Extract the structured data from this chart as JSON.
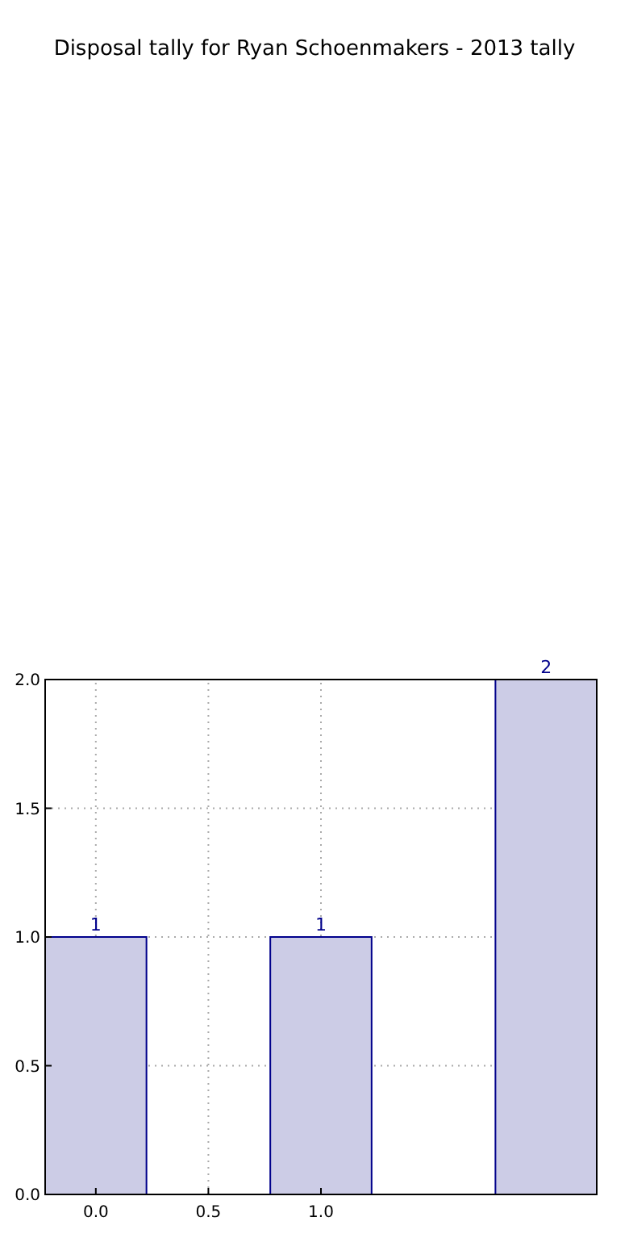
{
  "chart_data": {
    "type": "bar",
    "title": "Disposal tally for Ryan Schoenmakers - 2013 tally",
    "x": [
      0,
      1,
      2
    ],
    "values": [
      1,
      1,
      2
    ],
    "color": "#cccce6",
    "xlim": [
      -0.225,
      2.225
    ],
    "xticks": [
      {
        "value": 0,
        "label": "0.0"
      },
      {
        "value": 0.5,
        "label": "0.5"
      },
      {
        "value": 1,
        "label": "1.0"
      }
    ],
    "ylim": [
      0,
      2
    ],
    "yticks": [
      {
        "value": 0,
        "label": "0.0"
      },
      {
        "value": 0.5,
        "label": "0.5"
      },
      {
        "value": 1,
        "label": "1.0"
      },
      {
        "value": 1.5,
        "label": "1.5"
      },
      {
        "value": 2,
        "label": "2.0"
      }
    ],
    "grid": true,
    "data_labels": true
  }
}
